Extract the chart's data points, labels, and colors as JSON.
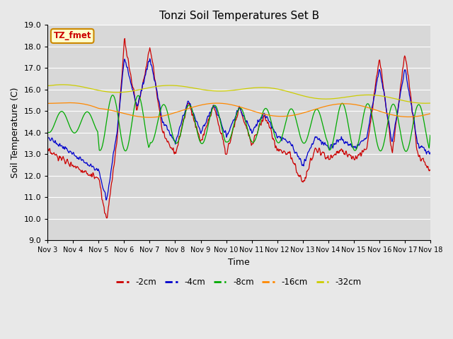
{
  "title": "Tonzi Soil Temperatures Set B",
  "xlabel": "Time",
  "ylabel": "Soil Temperature (C)",
  "ylim": [
    9.0,
    19.0
  ],
  "yticks": [
    9.0,
    10.0,
    11.0,
    12.0,
    13.0,
    14.0,
    15.0,
    16.0,
    17.0,
    18.0,
    19.0
  ],
  "xtick_labels": [
    "Nov 3",
    "Nov 4",
    "Nov 5",
    "Nov 6",
    "Nov 7",
    "Nov 8",
    "Nov 9",
    "Nov 10",
    "Nov 11",
    "Nov 12",
    "Nov 13",
    "Nov 14",
    "Nov 15",
    "Nov 16",
    "Nov 17",
    "Nov 18"
  ],
  "colors": {
    "-2cm": "#cc0000",
    "-4cm": "#0000cc",
    "-8cm": "#00aa00",
    "-16cm": "#ff8800",
    "-32cm": "#cccc00"
  },
  "legend_label": "TZ_fmet",
  "legend_box_facecolor": "#ffffcc",
  "legend_box_edgecolor": "#cc8800",
  "fig_facecolor": "#e8e8e8",
  "plot_facecolor": "#d8d8d8"
}
